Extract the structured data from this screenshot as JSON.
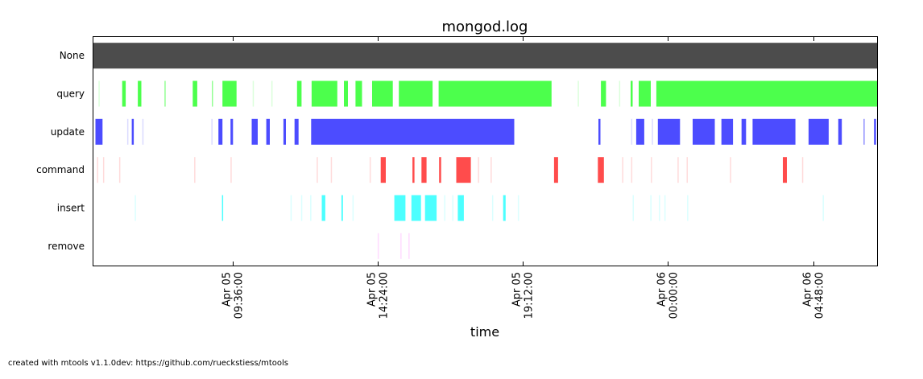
{
  "chart_data": {
    "type": "timeline",
    "title": "mongod.log",
    "xlabel": "time",
    "ylabel": "",
    "x_range": [
      "2016-04-05 05:00",
      "2016-04-06 06:55"
    ],
    "x_ticks": [
      {
        "date": "Apr 05",
        "time": "09:36:00",
        "value": "2016-04-05 09:36"
      },
      {
        "date": "Apr 05",
        "time": "14:24:00",
        "value": "2016-04-05 14:24"
      },
      {
        "date": "Apr 05",
        "time": "19:12:00",
        "value": "2016-04-05 19:12"
      },
      {
        "date": "Apr 06",
        "time": "00:00:00",
        "value": "2016-04-06 00:00"
      },
      {
        "date": "Apr 06",
        "time": "04:48:00",
        "value": "2016-04-06 04:48"
      }
    ],
    "grid": false,
    "legend": "none",
    "categories": [
      "None",
      "query",
      "update",
      "command",
      "insert",
      "remove"
    ],
    "series": [
      {
        "name": "None",
        "color": "#4c4c4c",
        "intervals": [
          [
            "2016-04-05 05:00",
            "2016-04-06 06:55",
            1
          ]
        ]
      },
      {
        "name": "query",
        "color": "#4cff4c",
        "intervals": [
          [
            "2016-04-05 05:10",
            "2016-04-05 05:10",
            0.2
          ],
          [
            "2016-04-05 05:57",
            "2016-04-05 06:04",
            1
          ],
          [
            "2016-04-05 06:28",
            "2016-04-05 06:35",
            1
          ],
          [
            "2016-04-05 07:21",
            "2016-04-05 07:22",
            0.6
          ],
          [
            "2016-04-05 08:17",
            "2016-04-05 08:26",
            1
          ],
          [
            "2016-04-05 08:55",
            "2016-04-05 08:56",
            0.6
          ],
          [
            "2016-04-05 09:16",
            "2016-04-05 09:44",
            1
          ],
          [
            "2016-04-05 10:16",
            "2016-04-05 10:17",
            0.2
          ],
          [
            "2016-04-05 10:53",
            "2016-04-05 10:54",
            0.2
          ],
          [
            "2016-04-05 11:44",
            "2016-04-05 11:53",
            1
          ],
          [
            "2016-04-05 12:13",
            "2016-04-05 13:04",
            1
          ],
          [
            "2016-04-05 13:17",
            "2016-04-05 13:25",
            1
          ],
          [
            "2016-04-05 13:40",
            "2016-04-05 13:53",
            1
          ],
          [
            "2016-04-05 14:13",
            "2016-04-05 14:54",
            1
          ],
          [
            "2016-04-05 15:06",
            "2016-04-05 16:13",
            1
          ],
          [
            "2016-04-05 16:25",
            "2016-04-05 20:09",
            1
          ],
          [
            "2016-04-05 21:01",
            "2016-04-05 21:02",
            0.2
          ],
          [
            "2016-04-05 21:47",
            "2016-04-05 21:57",
            1
          ],
          [
            "2016-04-05 22:23",
            "2016-04-05 22:24",
            0.2
          ],
          [
            "2016-04-05 22:46",
            "2016-04-05 22:50",
            1
          ],
          [
            "2016-04-05 23:02",
            "2016-04-05 23:26",
            1
          ],
          [
            "2016-04-05 23:37",
            "2016-04-06 06:55",
            1
          ]
        ]
      },
      {
        "name": "update",
        "color": "#4c4cff",
        "intervals": [
          [
            "2016-04-05 05:04",
            "2016-04-05 05:18",
            1
          ],
          [
            "2016-04-05 06:07",
            "2016-04-05 06:08",
            0.2
          ],
          [
            "2016-04-05 06:16",
            "2016-04-05 06:20",
            1
          ],
          [
            "2016-04-05 06:37",
            "2016-04-05 06:38",
            0.2
          ],
          [
            "2016-04-05 08:54",
            "2016-04-05 08:55",
            0.2
          ],
          [
            "2016-04-05 09:08",
            "2016-04-05 09:16",
            1
          ],
          [
            "2016-04-05 09:32",
            "2016-04-05 09:37",
            1
          ],
          [
            "2016-04-05 10:14",
            "2016-04-05 10:26",
            1
          ],
          [
            "2016-04-05 10:43",
            "2016-04-05 10:50",
            1
          ],
          [
            "2016-04-05 11:17",
            "2016-04-05 11:22",
            1
          ],
          [
            "2016-04-05 11:39",
            "2016-04-05 11:47",
            1
          ],
          [
            "2016-04-05 12:12",
            "2016-04-05 18:55",
            1
          ],
          [
            "2016-04-05 21:42",
            "2016-04-05 21:46",
            1
          ],
          [
            "2016-04-05 22:47",
            "2016-04-05 22:48",
            0.2
          ],
          [
            "2016-04-05 22:57",
            "2016-04-05 23:13",
            1
          ],
          [
            "2016-04-05 23:28",
            "2016-04-05 23:29",
            0.2
          ],
          [
            "2016-04-05 23:40",
            "2016-04-06 00:24",
            1
          ],
          [
            "2016-04-06 00:49",
            "2016-04-06 01:33",
            1
          ],
          [
            "2016-04-06 01:46",
            "2016-04-06 02:09",
            1
          ],
          [
            "2016-04-06 02:26",
            "2016-04-06 02:35",
            1
          ],
          [
            "2016-04-06 02:48",
            "2016-04-06 04:13",
            1
          ],
          [
            "2016-04-06 04:39",
            "2016-04-06 05:19",
            1
          ],
          [
            "2016-04-06 05:38",
            "2016-04-06 05:45",
            1
          ],
          [
            "2016-04-06 06:28",
            "2016-04-06 06:29",
            0.6
          ],
          [
            "2016-04-06 06:49",
            "2016-04-06 06:53",
            1
          ]
        ]
      },
      {
        "name": "command",
        "color": "#ff4c4c",
        "intervals": [
          [
            "2016-04-05 05:07",
            "2016-04-05 05:08",
            0.2
          ],
          [
            "2016-04-05 05:19",
            "2016-04-05 05:20",
            0.2
          ],
          [
            "2016-04-05 05:51",
            "2016-04-05 05:52",
            0.2
          ],
          [
            "2016-04-05 08:20",
            "2016-04-05 08:21",
            0.2
          ],
          [
            "2016-04-05 09:32",
            "2016-04-05 09:33",
            0.2
          ],
          [
            "2016-04-05 12:23",
            "2016-04-05 12:24",
            0.2
          ],
          [
            "2016-04-05 12:51",
            "2016-04-05 12:52",
            0.2
          ],
          [
            "2016-04-05 14:08",
            "2016-04-05 14:09",
            0.2
          ],
          [
            "2016-04-05 14:30",
            "2016-04-05 14:40",
            1
          ],
          [
            "2016-04-05 15:33",
            "2016-04-05 15:37",
            1
          ],
          [
            "2016-04-05 15:51",
            "2016-04-05 16:01",
            1
          ],
          [
            "2016-04-05 16:26",
            "2016-04-05 16:30",
            1
          ],
          [
            "2016-04-05 17:00",
            "2016-04-05 17:29",
            1
          ],
          [
            "2016-04-05 17:43",
            "2016-04-05 17:44",
            0.2
          ],
          [
            "2016-04-05 18:08",
            "2016-04-05 18:09",
            0.2
          ],
          [
            "2016-04-05 20:14",
            "2016-04-05 20:22",
            1
          ],
          [
            "2016-04-05 21:41",
            "2016-04-05 21:53",
            1
          ],
          [
            "2016-04-05 22:29",
            "2016-04-05 22:30",
            0.2
          ],
          [
            "2016-04-05 22:47",
            "2016-04-05 22:48",
            0.2
          ],
          [
            "2016-04-05 23:26",
            "2016-04-05 23:27",
            0.2
          ],
          [
            "2016-04-06 00:19",
            "2016-04-06 00:20",
            0.2
          ],
          [
            "2016-04-06 00:37",
            "2016-04-06 00:38",
            0.2
          ],
          [
            "2016-04-06 02:03",
            "2016-04-06 02:04",
            0.2
          ],
          [
            "2016-04-06 03:48",
            "2016-04-06 03:56",
            1
          ],
          [
            "2016-04-06 04:26",
            "2016-04-06 04:27",
            0.2
          ]
        ]
      },
      {
        "name": "insert",
        "color": "#4cffff",
        "intervals": [
          [
            "2016-04-05 06:22",
            "2016-04-05 06:23",
            0.2
          ],
          [
            "2016-04-05 09:15",
            "2016-04-05 09:17",
            1
          ],
          [
            "2016-04-05 11:31",
            "2016-04-05 11:32",
            0.2
          ],
          [
            "2016-04-05 11:52",
            "2016-04-05 11:53",
            0.2
          ],
          [
            "2016-04-05 12:10",
            "2016-04-05 12:11",
            0.2
          ],
          [
            "2016-04-05 12:33",
            "2016-04-05 12:40",
            1
          ],
          [
            "2016-04-05 13:12",
            "2016-04-05 13:15",
            1
          ],
          [
            "2016-04-05 13:34",
            "2016-04-05 13:35",
            0.2
          ],
          [
            "2016-04-05 14:57",
            "2016-04-05 15:19",
            1
          ],
          [
            "2016-04-05 15:31",
            "2016-04-05 15:50",
            1
          ],
          [
            "2016-04-05 15:58",
            "2016-04-05 16:21",
            1
          ],
          [
            "2016-04-05 16:36",
            "2016-04-05 16:37",
            0.2
          ],
          [
            "2016-04-05 16:52",
            "2016-04-05 16:53",
            0.2
          ],
          [
            "2016-04-05 17:03",
            "2016-04-05 17:15",
            1
          ],
          [
            "2016-04-05 18:11",
            "2016-04-05 18:12",
            0.2
          ],
          [
            "2016-04-05 18:33",
            "2016-04-05 18:38",
            1
          ],
          [
            "2016-04-05 19:02",
            "2016-04-05 19:03",
            0.2
          ],
          [
            "2016-04-05 22:50",
            "2016-04-05 22:51",
            0.2
          ],
          [
            "2016-04-05 23:25",
            "2016-04-05 23:26",
            0.2
          ],
          [
            "2016-04-05 23:42",
            "2016-04-05 23:43",
            0.2
          ],
          [
            "2016-04-05 23:53",
            "2016-04-05 23:54",
            0.2
          ],
          [
            "2016-04-06 00:38",
            "2016-04-06 00:39",
            0.2
          ],
          [
            "2016-04-06 05:07",
            "2016-04-06 05:08",
            0.2
          ]
        ]
      },
      {
        "name": "remove",
        "color": "#ff4cff",
        "intervals": [
          [
            "2016-04-05 14:24",
            "2016-04-05 14:25",
            0.2
          ],
          [
            "2016-04-05 15:09",
            "2016-04-05 15:10",
            0.2
          ],
          [
            "2016-04-05 15:25",
            "2016-04-05 15:26",
            0.2
          ]
        ]
      }
    ]
  },
  "footer": "created with mtools v1.1.0dev: https://github.com/rueckstiess/mtools"
}
